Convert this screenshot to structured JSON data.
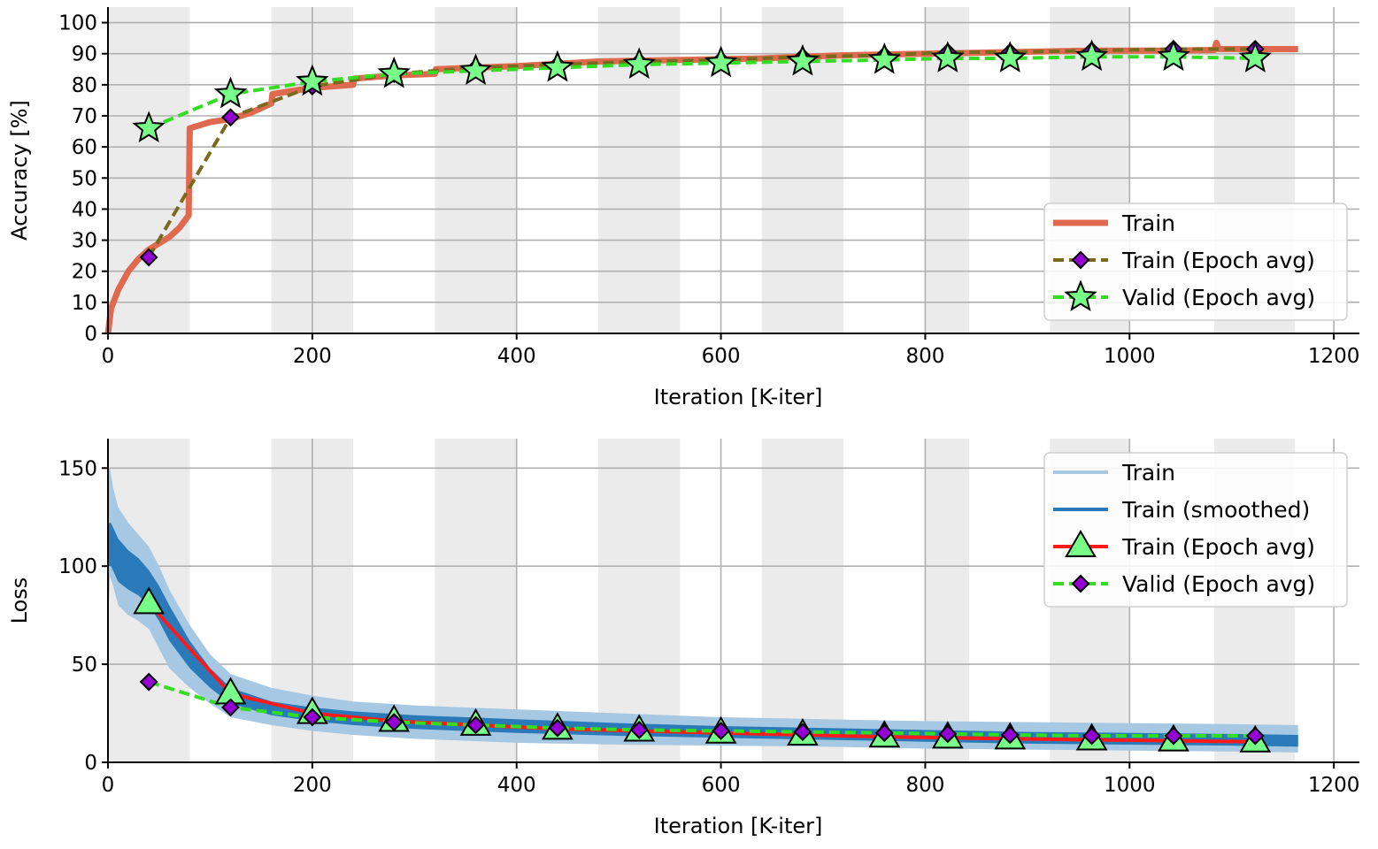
{
  "chart_data": [
    {
      "type": "line",
      "xlabel": "Iteration [K-iter]",
      "ylabel": "Accuracy [%]",
      "xlim": [
        0,
        1225
      ],
      "ylim": [
        0,
        105
      ],
      "xticks": [
        0,
        200,
        400,
        600,
        800,
        1000,
        1200
      ],
      "yticks": [
        0,
        10,
        20,
        30,
        40,
        50,
        60,
        70,
        80,
        90,
        100
      ],
      "grid": true,
      "legend_position": "lower-right",
      "epoch_shading": [
        [
          0,
          80
        ],
        [
          160,
          240
        ],
        [
          320,
          400
        ],
        [
          480,
          560
        ],
        [
          640,
          720
        ],
        [
          800,
          843
        ],
        [
          922,
          1000
        ],
        [
          1083,
          1162
        ]
      ],
      "series": [
        {
          "name": "Train",
          "style": "thick-line",
          "color": "#e06a4f",
          "x": [
            0,
            3,
            10,
            20,
            30,
            40,
            50,
            60,
            70,
            79,
            80,
            100,
            120,
            140,
            160,
            161,
            180,
            200,
            240,
            241,
            280,
            320,
            321,
            360,
            400,
            480,
            560,
            640,
            720,
            800,
            880,
            960,
            1040,
            1083,
            1085,
            1087,
            1120,
            1165
          ],
          "y": [
            0,
            8,
            14,
            20,
            24,
            27,
            29,
            31,
            34,
            38,
            66,
            68,
            69,
            71,
            74,
            77,
            78,
            79,
            80,
            82,
            83,
            83.5,
            85,
            85.5,
            86,
            87.5,
            88,
            88.5,
            89.5,
            90,
            90.5,
            91,
            91,
            91.2,
            93.5,
            91.5,
            91.5,
            91.5
          ]
        },
        {
          "name": "Train (Epoch avg)",
          "style": "dashed-diamond",
          "color": "#7a6a1e",
          "marker_color": "#9400d3",
          "x": [
            40,
            120,
            200,
            280,
            360,
            440,
            520,
            600,
            680,
            760,
            822,
            883,
            963,
            1043,
            1123
          ],
          "y": [
            24.5,
            69.5,
            79.5,
            83.5,
            85.5,
            86.5,
            87.5,
            88,
            89,
            89.5,
            90.5,
            90.5,
            91,
            91.5,
            91.5
          ]
        },
        {
          "name": "Valid (Epoch avg)",
          "style": "dashed-star",
          "color": "#33dd22",
          "marker_color": "#77ff88",
          "x": [
            40,
            120,
            200,
            280,
            360,
            440,
            520,
            600,
            680,
            760,
            822,
            883,
            963,
            1043,
            1123
          ],
          "y": [
            66,
            77,
            81,
            83.5,
            84.5,
            85.5,
            86.5,
            87,
            87.5,
            88,
            88.5,
            88.5,
            89,
            89,
            88.5
          ]
        }
      ]
    },
    {
      "type": "line",
      "xlabel": "Iteration [K-iter]",
      "ylabel": "Loss",
      "xlim": [
        0,
        1225
      ],
      "ylim": [
        0,
        165
      ],
      "xticks": [
        0,
        200,
        400,
        600,
        800,
        1000,
        1200
      ],
      "yticks": [
        0,
        50,
        100,
        150
      ],
      "grid": true,
      "legend_position": "upper-right",
      "epoch_shading": [
        [
          0,
          80
        ],
        [
          160,
          240
        ],
        [
          320,
          400
        ],
        [
          480,
          560
        ],
        [
          640,
          720
        ],
        [
          800,
          843
        ],
        [
          922,
          1000
        ],
        [
          1083,
          1162
        ]
      ],
      "series": [
        {
          "name": "Train",
          "style": "band",
          "color": "#a6c8e3",
          "x": [
            0,
            2,
            5,
            10,
            20,
            30,
            40,
            50,
            60,
            80,
            100,
            120,
            160,
            200,
            240,
            300,
            400,
            500,
            600,
            700,
            800,
            900,
            1000,
            1100,
            1165
          ],
          "y_low": [
            70,
            95,
            90,
            80,
            75,
            72,
            68,
            58,
            48,
            38,
            30,
            23,
            19,
            16,
            14,
            12,
            10,
            9,
            8.5,
            8,
            7,
            6.5,
            6,
            5.5,
            5
          ],
          "y_high": [
            150,
            150,
            140,
            130,
            122,
            116,
            110,
            100,
            88,
            70,
            55,
            45,
            38,
            34,
            31,
            29,
            27,
            25,
            23,
            22,
            21,
            20.5,
            20,
            19.5,
            19
          ]
        },
        {
          "name": "Train (smoothed)",
          "style": "band",
          "color": "#2a7ab9",
          "x": [
            0,
            3,
            10,
            20,
            30,
            40,
            50,
            60,
            80,
            100,
            120,
            160,
            200,
            240,
            300,
            400,
            500,
            600,
            700,
            800,
            900,
            1000,
            1100,
            1165
          ],
          "y_low": [
            100,
            100,
            92,
            88,
            85,
            80,
            72,
            62,
            48,
            38,
            30,
            24,
            21,
            19,
            17,
            15,
            13.5,
            12.5,
            11.5,
            10.5,
            9.5,
            9,
            8.5,
            8
          ],
          "y_high": [
            122,
            122,
            114,
            108,
            104,
            98,
            90,
            80,
            62,
            48,
            38,
            31,
            28,
            26,
            24,
            22,
            20,
            18.5,
            17.5,
            16.5,
            15.5,
            15,
            14.5,
            14
          ]
        },
        {
          "name": "Train (Epoch avg)",
          "style": "solid-triangle",
          "color": "#ff1a1a",
          "marker_color": "#77ff88",
          "x": [
            40,
            120,
            200,
            280,
            360,
            440,
            520,
            600,
            680,
            760,
            822,
            883,
            963,
            1043,
            1123
          ],
          "y": [
            81,
            35,
            25,
            21,
            19,
            17,
            16,
            15,
            14,
            13,
            12.5,
            12,
            11.5,
            11,
            10.5
          ]
        },
        {
          "name": "Valid (Epoch avg)",
          "style": "dashed-diamond",
          "color": "#33dd22",
          "marker_color": "#9400d3",
          "x": [
            40,
            120,
            200,
            280,
            360,
            440,
            520,
            600,
            680,
            760,
            822,
            883,
            963,
            1043,
            1123
          ],
          "y": [
            41,
            28,
            23,
            20.5,
            19,
            17.5,
            16.5,
            16,
            15.5,
            15,
            14.5,
            14,
            13.5,
            13.5,
            13.5
          ]
        }
      ]
    }
  ]
}
